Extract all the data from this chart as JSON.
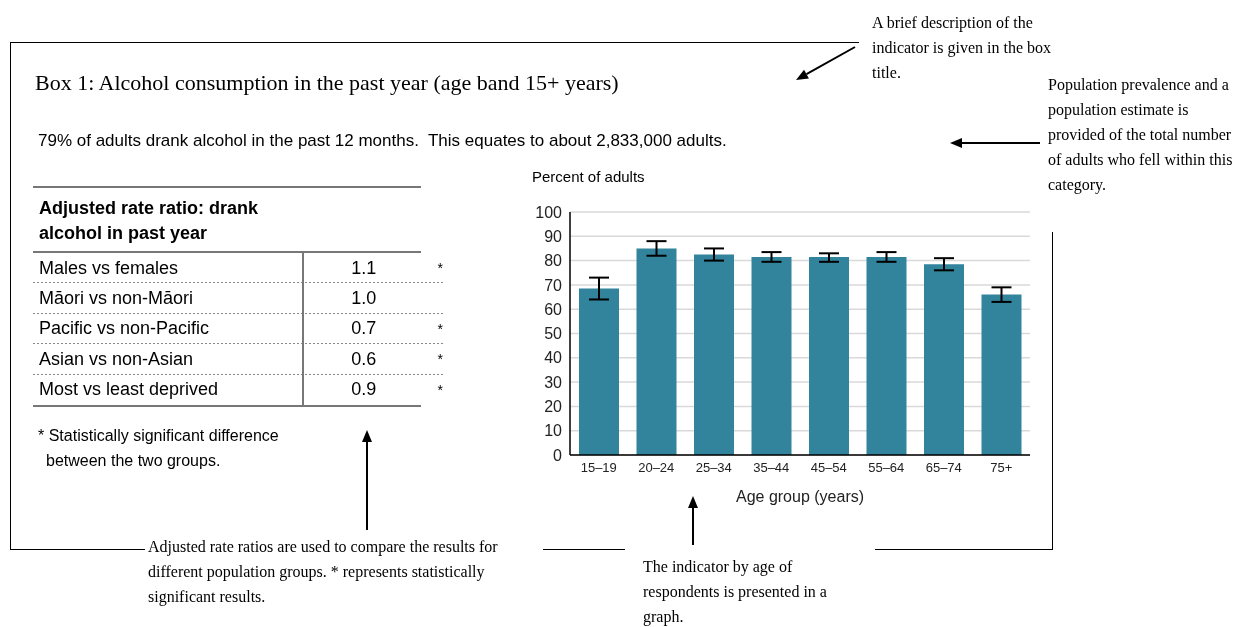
{
  "chart_data": [
    {
      "type": "bar",
      "title": "Box 1: Alcohol consumption in the past year (age band 15+ years)",
      "subtitle": "79% of adults drank alcohol in the past 12 months.  This equates to about 2,833,000 adults.",
      "ylabel": "Percent of adults",
      "xlabel": "Age group (years)",
      "categories": [
        "15–19",
        "20–24",
        "25–34",
        "35–44",
        "45–54",
        "55–64",
        "65–74",
        "75+"
      ],
      "values": [
        68.5,
        85,
        82.5,
        81.5,
        81.5,
        81.5,
        78.5,
        66
      ],
      "color": "#31849b",
      "errors": [
        [
          64,
          73
        ],
        [
          82,
          88
        ],
        [
          80,
          85
        ],
        [
          79.5,
          83.5
        ],
        [
          79.5,
          83
        ],
        [
          79.5,
          83.5
        ],
        [
          76,
          81
        ],
        [
          63,
          69
        ]
      ],
      "ylim": [
        0,
        100
      ],
      "yticks": [
        0,
        10,
        20,
        30,
        40,
        50,
        60,
        70,
        80,
        90,
        100
      ],
      "grid": "y",
      "annotations": [
        "A brief description of the indicator is given in the box title.",
        "Population prevalence and a population estimate is provided of the total number of adults who fell within this category.",
        "Adjusted rate ratios are used to compare the results for different population groups. * represents statistically significant results.",
        "The indicator by age of respondents is presented in a graph."
      ]
    },
    {
      "type": "other",
      "title": "Adjusted rate ratio: drank alcohol in past year",
      "categories": [
        "Males vs females",
        "Māori vs non-Māori",
        "Pacific vs non-Pacific",
        "Asian vs non-Asian",
        "Most vs least deprived"
      ],
      "cell_labels": [
        [
          "1.1",
          "*"
        ],
        [
          "1.0",
          null
        ],
        [
          "0.7",
          "*"
        ],
        [
          "0.6",
          "*"
        ],
        [
          "0.9",
          "*"
        ]
      ],
      "annotations": [
        "* Statistically significant difference between the two groups."
      ]
    }
  ]
}
